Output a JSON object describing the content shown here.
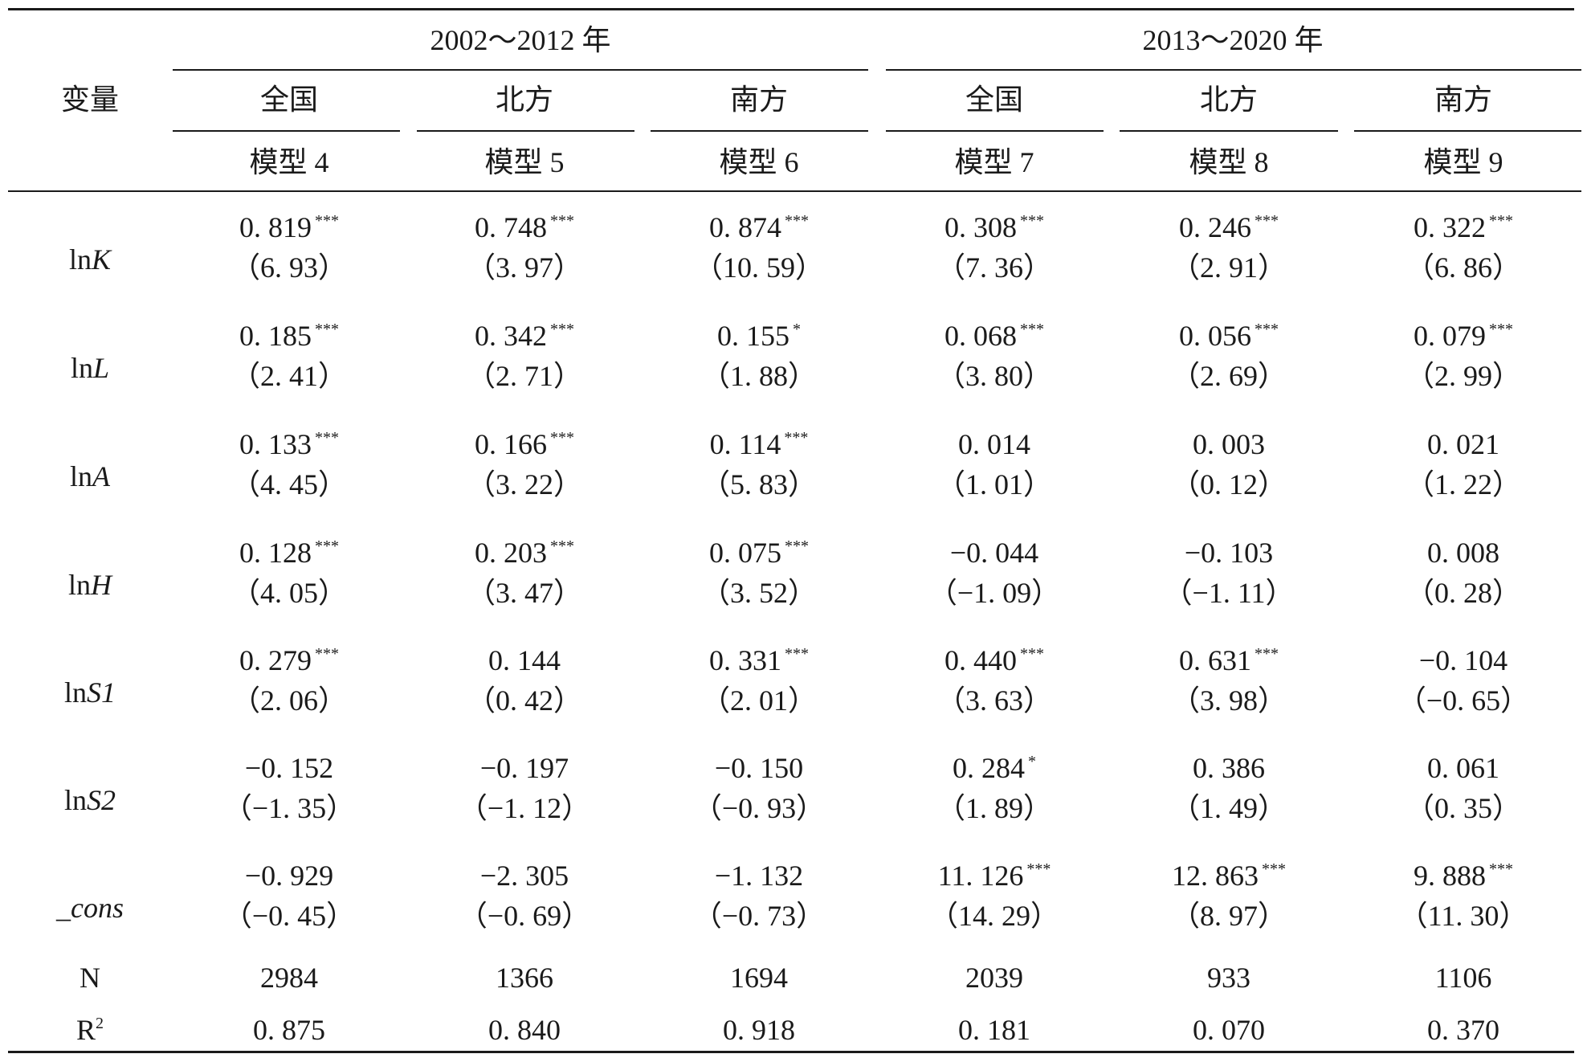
{
  "header": {
    "variable_label": "变量",
    "period_groups": [
      "2002～2012 年",
      "2013～2020 年"
    ],
    "regions": [
      "全国",
      "北方",
      "南方",
      "全国",
      "北方",
      "南方"
    ],
    "models": [
      "模型 4",
      "模型 5",
      "模型 6",
      "模型 7",
      "模型 8",
      "模型 9"
    ]
  },
  "rows": [
    {
      "var_prefix": "ln",
      "var_italic": "K",
      "coef": [
        "0. 819",
        "0. 748",
        "0. 874",
        "0. 308",
        "0. 246",
        "0. 322"
      ],
      "stars": [
        "***",
        "***",
        "***",
        "***",
        "***",
        "***"
      ],
      "tstat": [
        "（6. 93）",
        "（3. 97）",
        "（10. 59）",
        "（7. 36）",
        "（2. 91）",
        "（6. 86）"
      ]
    },
    {
      "var_prefix": "ln",
      "var_italic": "L",
      "coef": [
        "0. 185",
        "0. 342",
        "0. 155",
        "0. 068",
        "0. 056",
        "0. 079"
      ],
      "stars": [
        "***",
        "***",
        "*",
        "***",
        "***",
        "***"
      ],
      "tstat": [
        "（2. 41）",
        "（2. 71）",
        "（1. 88）",
        "（3. 80）",
        "（2. 69）",
        "（2. 99）"
      ]
    },
    {
      "var_prefix": "ln",
      "var_italic": "A",
      "coef": [
        "0. 133",
        "0. 166",
        "0. 114",
        "0. 014",
        "0. 003",
        "0. 021"
      ],
      "stars": [
        "***",
        "***",
        "***",
        "",
        "",
        ""
      ],
      "tstat": [
        "（4. 45）",
        "（3. 22）",
        "（5. 83）",
        "（1. 01）",
        "（0. 12）",
        "（1. 22）"
      ]
    },
    {
      "var_prefix": "ln",
      "var_italic": "H",
      "coef": [
        "0. 128",
        "0. 203",
        "0. 075",
        "−0. 044",
        "−0. 103",
        "0. 008"
      ],
      "stars": [
        "***",
        "***",
        "***",
        "",
        "",
        ""
      ],
      "tstat": [
        "（4. 05）",
        "（3. 47）",
        "（3. 52）",
        "（−1. 09）",
        "（−1. 11）",
        "（0. 28）"
      ]
    },
    {
      "var_prefix": "ln",
      "var_italic": "S1",
      "coef": [
        "0. 279",
        "0. 144",
        "0. 331",
        "0. 440",
        "0. 631",
        "−0. 104"
      ],
      "stars": [
        "***",
        "",
        "***",
        "***",
        "***",
        ""
      ],
      "tstat": [
        "（2. 06）",
        "（0. 42）",
        "（2. 01）",
        "（3. 63）",
        "（3. 98）",
        "（−0. 65）"
      ]
    },
    {
      "var_prefix": "ln",
      "var_italic": "S2",
      "coef": [
        "−0. 152",
        "−0. 197",
        "−0. 150",
        "0. 284",
        "0. 386",
        "0. 061"
      ],
      "stars": [
        "",
        "",
        "",
        "*",
        "",
        ""
      ],
      "tstat": [
        "（−1. 35）",
        "（−1. 12）",
        "（−0. 93）",
        "（1. 89）",
        "（1. 49）",
        "（0. 35）"
      ]
    },
    {
      "var_prefix": "",
      "var_italic": "_cons",
      "coef": [
        "−0. 929",
        "−2. 305",
        "−1. 132",
        "11. 126",
        "12. 863",
        "9. 888"
      ],
      "stars": [
        "",
        "",
        "",
        "***",
        "***",
        "***"
      ],
      "tstat": [
        "（−0. 45）",
        "（−0. 69）",
        "（−0. 73）",
        "（14. 29）",
        "（8. 97）",
        "（11. 30）"
      ]
    }
  ],
  "n_row": {
    "label": "N",
    "values": [
      "2984",
      "1366",
      "1694",
      "2039",
      "933",
      "1106"
    ]
  },
  "r2_row": {
    "label_base": "R",
    "label_sup": "2",
    "values": [
      "0. 875",
      "0. 840",
      "0. 918",
      "0. 181",
      "0. 070",
      "0. 370"
    ]
  }
}
